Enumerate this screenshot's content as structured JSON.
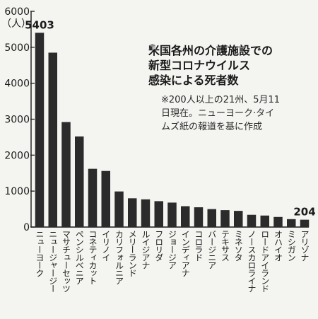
{
  "title_lines": [
    "米国各州の介護施設での",
    "新型コロナウイルス",
    "感染による死者数"
  ],
  "note_lines": [
    "※200人以上の21州、5月11",
    "日現在。ニューヨーク·タイ",
    "ムズ紙の報道を基に作成"
  ],
  "title_icon": "cube-icon",
  "chart_data": {
    "type": "bar",
    "unit_label": "（人）",
    "ylim": [
      0,
      6000
    ],
    "yticks": [
      "0",
      "1000",
      "2000",
      "3000",
      "4000",
      "5000",
      "6000"
    ],
    "grid": false,
    "bar_color": "#2b2b2b",
    "categories": [
      "ニューヨーク",
      "ニュージャージー",
      "マサチューセッツ",
      "ペンシルベニア",
      "コネティカット",
      "イリノイ",
      "カリフォルニア",
      "メリーランド",
      "ルイジアナ",
      "フロリダ",
      "ジョージア",
      "インディアナ",
      "コロラド",
      "バージニア",
      "テキサス",
      "ミネソタ",
      "ノースカロライナ",
      "ロードアイランド",
      "オハイオ",
      "ミシガン",
      "アリゾナ"
    ],
    "values": [
      5403,
      4850,
      2920,
      2520,
      1620,
      1560,
      990,
      800,
      770,
      720,
      680,
      580,
      550,
      500,
      470,
      450,
      340,
      320,
      280,
      220,
      204
    ],
    "data_labels": [
      {
        "index": 0,
        "text": "5403"
      },
      {
        "index": 20,
        "text": "204"
      }
    ]
  }
}
